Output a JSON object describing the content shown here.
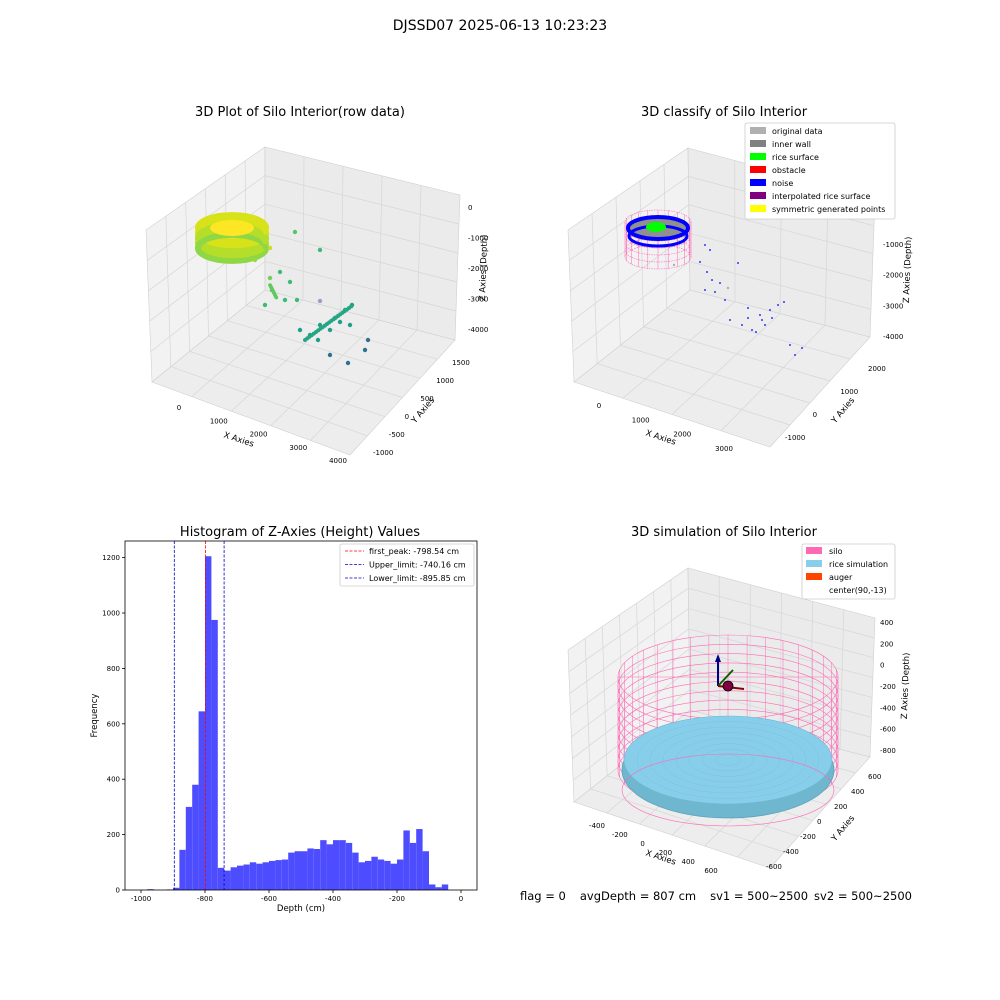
{
  "page": {
    "suptitle": "DJSSD07 2025-06-13 10:23:23",
    "status": {
      "flag": "flag = 0",
      "avg_depth": "avgDepth = 807 cm",
      "sv1": "sv1 = 500~2500",
      "sv2": "sv2 = 500~2500"
    }
  },
  "colors": {
    "hist_bar": "#4d4dff",
    "first_peak": "#ff0000",
    "limit": "#0000cc",
    "silo": "#ff69b4",
    "rice": "#87ceeb",
    "auger": "#ff4500",
    "pane": "#f2f2f2"
  },
  "chart_data": [
    {
      "type": "scatter",
      "title": "3D Plot of Silo Interior(row data)",
      "xlabel": "X Axies",
      "ylabel": "Y Axies",
      "zlabel": "Z Axies (Depth)",
      "x_ticks": [
        "0",
        "1000",
        "2000",
        "3000",
        "4000"
      ],
      "y_ticks": [
        "-1000",
        "-500",
        "0",
        "500",
        "1000",
        "1500"
      ],
      "z_ticks": [
        "0",
        "-1000",
        "-2000",
        "-3000",
        "-4000"
      ],
      "colormap": "viridis"
    },
    {
      "type": "scatter",
      "title": "3D classify of Silo Interior",
      "xlabel": "X Axies",
      "ylabel": "Y Axies",
      "zlabel": "Z Axies (Depth)",
      "x_ticks": [
        "0",
        "1000",
        "2000",
        "3000"
      ],
      "y_ticks": [
        "-1000",
        "0",
        "1000",
        "2000"
      ],
      "z_ticks": [
        "0",
        "-1000",
        "-2000",
        "-3000",
        "-4000"
      ],
      "legend_position": "top-right",
      "legend": [
        {
          "label": "original data",
          "color": "#b0b0b0"
        },
        {
          "label": "inner wall",
          "color": "#808080"
        },
        {
          "label": "rice surface",
          "color": "#00ff00"
        },
        {
          "label": "obstacle",
          "color": "#ff0000"
        },
        {
          "label": "noise",
          "color": "#0000ff"
        },
        {
          "label": "interpolated rice surface",
          "color": "#800080"
        },
        {
          "label": "symmetric generated points",
          "color": "#ffff00"
        }
      ]
    },
    {
      "type": "bar",
      "title": "Histogram of Z-Axies (Height) Values",
      "xlabel": "Depth (cm)",
      "ylabel": "Frequency",
      "xlim": [
        -1000,
        0
      ],
      "ylim": [
        0,
        1260
      ],
      "x_ticks": [
        -1000,
        -800,
        -600,
        -400,
        -200,
        0
      ],
      "y_ticks": [
        0,
        200,
        400,
        600,
        800,
        1000,
        1200
      ],
      "bin_width": 20,
      "bins_start": [
        -1000,
        -980,
        -960,
        -940,
        -920,
        -900,
        -880,
        -860,
        -840,
        -820,
        -800,
        -780,
        -760,
        -740,
        -720,
        -700,
        -680,
        -660,
        -640,
        -620,
        -600,
        -580,
        -560,
        -540,
        -520,
        -500,
        -480,
        -460,
        -440,
        -420,
        -400,
        -380,
        -360,
        -340,
        -320,
        -300,
        -280,
        -260,
        -240,
        -220,
        -200,
        -180,
        -160,
        -140,
        -120,
        -100,
        -80,
        -60,
        -40,
        -20
      ],
      "values": [
        0,
        3,
        0,
        0,
        2,
        8,
        145,
        300,
        380,
        645,
        1205,
        975,
        80,
        70,
        82,
        88,
        92,
        100,
        95,
        100,
        105,
        108,
        110,
        135,
        140,
        140,
        150,
        148,
        180,
        165,
        180,
        180,
        170,
        135,
        100,
        105,
        120,
        110,
        105,
        95,
        110,
        215,
        170,
        220,
        140,
        20,
        10,
        20,
        0,
        0
      ],
      "lines": [
        {
          "label": "first_peak: -798.54 cm",
          "x": -798.54,
          "style": "red-dashed"
        },
        {
          "label": "Upper_limit: -740.16 cm",
          "x": -740.16,
          "style": "blue-dashed"
        },
        {
          "label": "Lower_limit: -895.85 cm",
          "x": -895.85,
          "style": "blue-dashed"
        }
      ],
      "legend_position": "top-right"
    },
    {
      "type": "scatter",
      "title": "3D simulation of Silo Interior",
      "xlabel": "X Axies",
      "ylabel": "Y Axies",
      "zlabel": "Z Axies (Depth)",
      "x_ticks": [
        "-400",
        "-200",
        "0",
        "200",
        "400",
        "600"
      ],
      "y_ticks": [
        "-600",
        "-400",
        "-200",
        "0",
        "200",
        "400",
        "600"
      ],
      "z_ticks": [
        "400",
        "200",
        "0",
        "-200",
        "-400",
        "-600",
        "-800"
      ],
      "legend_position": "top-right",
      "legend": [
        {
          "label": "silo",
          "color": "#ff69b4"
        },
        {
          "label": "rice simulation",
          "color": "#87ceeb"
        },
        {
          "label": "auger",
          "color": "#ff4500"
        },
        {
          "label": "center(90,-13)",
          "color": "#ffffff"
        }
      ]
    }
  ]
}
